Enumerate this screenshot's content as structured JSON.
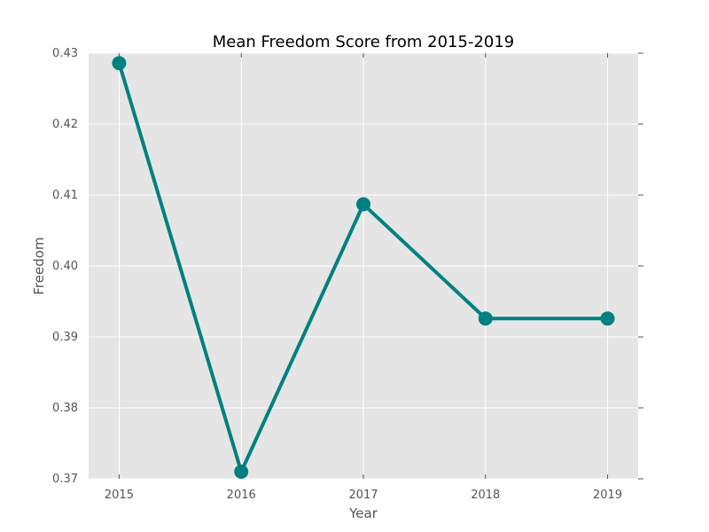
{
  "chart_data": {
    "type": "line",
    "title": "Mean Freedom Score from 2015-2019",
    "xlabel": "Year",
    "ylabel": "Freedom",
    "x": [
      2015,
      2016,
      2017,
      2018,
      2019
    ],
    "x_tick_labels": [
      "2015",
      "2016",
      "2017",
      "2018",
      "2019"
    ],
    "xlim": [
      2014.75,
      2019.25
    ],
    "y_ticks": [
      0.37,
      0.38,
      0.39,
      0.4,
      0.41,
      0.42,
      0.43
    ],
    "y_tick_labels": [
      "0.37",
      "0.38",
      "0.39",
      "0.40",
      "0.41",
      "0.42",
      "0.43"
    ],
    "ylim": [
      0.37,
      0.43
    ],
    "grid": true,
    "series": [
      {
        "name": "Freedom",
        "values": [
          0.4286,
          0.371,
          0.4087,
          0.3926,
          0.3926
        ]
      }
    ],
    "colors": {
      "line": "#008080",
      "plot_bg": "#e5e5e5",
      "grid": "#ffffff"
    }
  }
}
